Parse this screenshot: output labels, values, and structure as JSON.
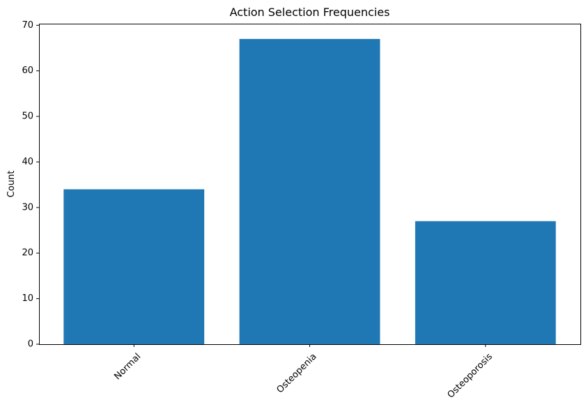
{
  "chart_data": {
    "type": "bar",
    "title": "Action Selection Frequencies",
    "xlabel": "",
    "ylabel": "Count",
    "categories": [
      "Normal",
      "Osteopenia",
      "Osteoporosis"
    ],
    "values": [
      34,
      67,
      27
    ],
    "ylim": [
      0,
      70.35
    ],
    "yticks": [
      0,
      10,
      20,
      30,
      40,
      50,
      60,
      70
    ],
    "grid": false,
    "bar_color": "#1f77b4"
  }
}
